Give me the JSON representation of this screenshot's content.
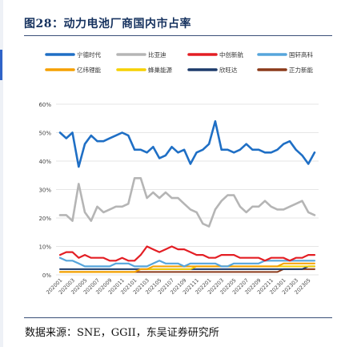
{
  "figure": {
    "title": "图28：动力电池厂商国内市占率",
    "source": "数据来源：SNE，GGII，东吴证券研究所"
  },
  "colors": {
    "title": "#15315e",
    "rule": "#3a4f78",
    "grid": "#e6e6e6"
  },
  "chart_data": {
    "type": "line",
    "title": "",
    "xlabel": "",
    "ylabel": "",
    "ylim": [
      0,
      60
    ],
    "yticks": [
      "0%",
      "10%",
      "20%",
      "30%",
      "40%",
      "50%",
      "60%"
    ],
    "grid": true,
    "legend_position": "top",
    "x_tick_labels": [
      "202001",
      "202003",
      "202005",
      "202007",
      "202009",
      "202011",
      "202101",
      "202103",
      "202105",
      "202107",
      "202109",
      "202111",
      "202201",
      "202203",
      "202205",
      "202207",
      "202209",
      "202211",
      "202301",
      "202303",
      "202305"
    ],
    "x": [
      "202001",
      "202002",
      "202003",
      "202004",
      "202005",
      "202006",
      "202007",
      "202008",
      "202009",
      "202010",
      "202011",
      "202012",
      "202101",
      "202102",
      "202103",
      "202104",
      "202105",
      "202106",
      "202107",
      "202108",
      "202109",
      "202110",
      "202111",
      "202112",
      "202201",
      "202202",
      "202203",
      "202204",
      "202205",
      "202206",
      "202207",
      "202208",
      "202209",
      "202210",
      "202211",
      "202212",
      "202301",
      "202302",
      "202303",
      "202304",
      "202305",
      "202306"
    ],
    "series": [
      {
        "name": "宁德时代",
        "color": "#1f6fc5",
        "width": 2.6,
        "values": [
          50,
          48,
          50,
          38,
          46,
          49,
          47,
          47,
          48,
          49,
          50,
          49,
          44,
          44,
          43,
          45,
          41,
          42,
          45,
          43,
          44,
          39,
          43,
          44,
          46,
          54,
          44,
          44,
          43,
          44,
          46,
          44,
          44,
          43,
          43,
          44,
          46,
          47,
          44,
          42,
          39,
          43
        ]
      },
      {
        "name": "比亚迪",
        "color": "#b5b5b5",
        "width": 2.6,
        "values": [
          21,
          21,
          19,
          32,
          22,
          19,
          24,
          22,
          23,
          24,
          24,
          25,
          34,
          34,
          27,
          29,
          27,
          29,
          27,
          27,
          25,
          23,
          22,
          18,
          17,
          23,
          26,
          28,
          28,
          24,
          22,
          24,
          24,
          26,
          24,
          23,
          23,
          24,
          25,
          26,
          22,
          21
        ]
      },
      {
        "name": "中创新航",
        "color": "#e31e24",
        "width": 2.2,
        "values": [
          7,
          8,
          8,
          6,
          7,
          6,
          6,
          6,
          5,
          5,
          6,
          5,
          5,
          7,
          10,
          9,
          8,
          9,
          10,
          9,
          9,
          8,
          7,
          7,
          6,
          6,
          7,
          7,
          7,
          6,
          6,
          6,
          6,
          5,
          6,
          6,
          6,
          5,
          6,
          6,
          7,
          7
        ]
      },
      {
        "name": "国轩高科",
        "color": "#56a5dc",
        "width": 2.2,
        "values": [
          6,
          5,
          5,
          4,
          3,
          3,
          3,
          3,
          3,
          4,
          4,
          4,
          3,
          3,
          3,
          4,
          5,
          4,
          4,
          4,
          3,
          4,
          4,
          4,
          4,
          4,
          3,
          3,
          4,
          4,
          4,
          4,
          4,
          5,
          5,
          5,
          5,
          5,
          5,
          5,
          5,
          5
        ]
      },
      {
        "name": "亿纬锂能",
        "color": "#f5a000",
        "width": 2.0,
        "values": [
          1,
          1,
          1,
          1,
          1,
          1,
          1,
          1,
          1,
          1,
          1,
          1,
          1,
          2,
          2,
          3,
          3,
          3,
          3,
          3,
          3,
          3,
          3,
          3,
          3,
          3,
          3,
          3,
          3,
          3,
          3,
          3,
          3,
          3,
          3,
          3,
          4,
          4,
          4,
          4,
          4,
          4
        ]
      },
      {
        "name": "蜂巢能源",
        "color": "#f6d100",
        "width": 2.0,
        "values": [
          1,
          1,
          1,
          1,
          1,
          1,
          1,
          1,
          1,
          1,
          1,
          1,
          1,
          2,
          2,
          2,
          2,
          2,
          2,
          2,
          2,
          2,
          3,
          3,
          3,
          3,
          3,
          3,
          3,
          3,
          3,
          3,
          3,
          3,
          3,
          3,
          3,
          3,
          3,
          3,
          3,
          3
        ]
      },
      {
        "name": "欣旺达",
        "color": "#1d3b6b",
        "width": 2.0,
        "values": [
          2,
          2,
          2,
          2,
          2,
          2,
          2,
          2,
          2,
          2,
          2,
          2,
          2,
          2,
          2,
          2,
          2,
          2,
          2,
          2,
          2,
          2,
          2,
          2,
          2,
          2,
          2,
          2,
          2,
          2,
          2,
          2,
          2,
          2,
          2,
          2,
          2,
          2,
          2,
          2,
          3,
          3
        ]
      },
      {
        "name": "正力新能",
        "color": "#8b3a1a",
        "width": 2.0,
        "values": [
          1,
          1,
          1,
          1,
          1,
          1,
          1,
          1,
          1,
          1,
          1,
          1,
          1,
          1,
          1,
          1,
          1,
          1,
          1,
          1,
          1,
          1,
          1,
          1,
          1,
          1,
          1,
          1,
          1,
          1,
          1,
          1,
          1,
          1,
          1,
          1,
          2,
          2,
          2,
          2,
          2,
          2
        ]
      }
    ]
  }
}
